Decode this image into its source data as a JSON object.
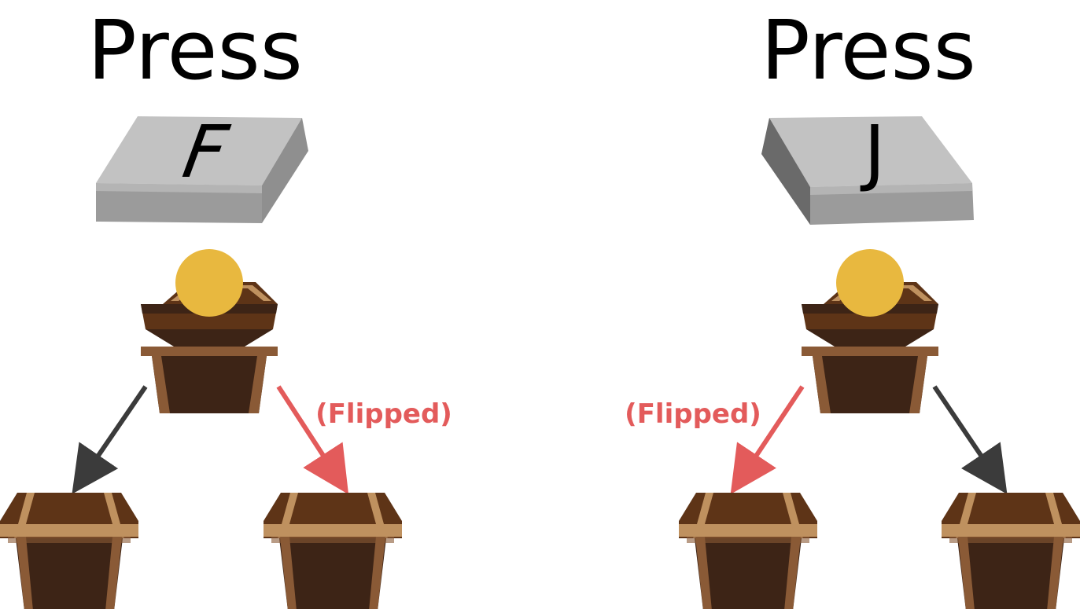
{
  "panels": {
    "left": {
      "title": "Press",
      "key_letter": "F",
      "flipped_label": "(Flipped)"
    },
    "right": {
      "title": "Press",
      "key_letter": "J",
      "flipped_label": "(Flipped)"
    }
  },
  "colors": {
    "key_top": "#c2c2c2",
    "key_side": "#8f8f8f",
    "key_side_dark": "#6a6a6a",
    "chest_dark": "#3d2416",
    "chest_mid": "#5e3417",
    "chest_trim": "#8a5a36",
    "chest_trim_light": "#bf915f",
    "coin": "#e8b83f",
    "arrow_normal": "#3b3b3b",
    "arrow_flipped": "#e35b5b"
  }
}
